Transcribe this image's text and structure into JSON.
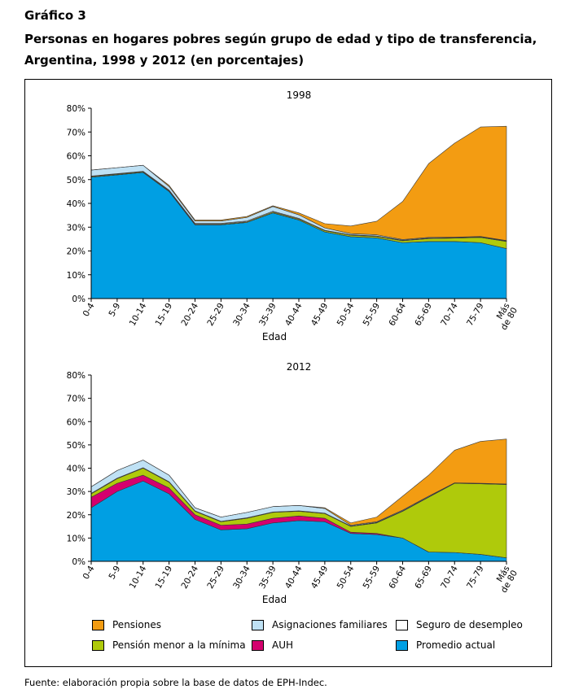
{
  "figure_label": "Gráfico 3",
  "title": "Personas en hogares pobres según grupo de edad y tipo de transferencia, Argentina, 1998 y 2012 (en porcentajes)",
  "source": "Fuente: elaboración propia sobre la base de datos de EPH-Indec.",
  "colors": {
    "pensiones": "#F39C12",
    "asignaciones": "#BFE1F4",
    "seguro": "#FFFFFF",
    "pension_menor": "#AFCA0B",
    "auh": "#D4006E",
    "promedio": "#009FE3"
  },
  "legend": [
    {
      "key": "pensiones",
      "label": "Pensiones"
    },
    {
      "key": "asignaciones",
      "label": "Asignaciones familiares"
    },
    {
      "key": "seguro",
      "label": "Seguro de desempleo"
    },
    {
      "key": "pension_menor",
      "label": "Pensión menor a la mínima"
    },
    {
      "key": "auh",
      "label": "AUH"
    },
    {
      "key": "promedio",
      "label": "Promedio actual"
    }
  ],
  "chart_data": [
    {
      "type": "area",
      "title": "1998",
      "xlabel": "Edad",
      "ylabel": "",
      "ylim": [
        0,
        80
      ],
      "ytick_labels": [
        "0%",
        "10%",
        "20%",
        "30%",
        "40%",
        "50%",
        "60%",
        "70%",
        "80%"
      ],
      "categories": [
        "0-4",
        "5-9",
        "10-14",
        "15-19",
        "20-24",
        "25-29",
        "30-34",
        "35-39",
        "40-44",
        "45-49",
        "50-54",
        "55-59",
        "60-64",
        "65-69",
        "70-74",
        "75-79",
        "Más de 80"
      ],
      "stacked": true,
      "series": [
        {
          "name": "Promedio actual",
          "key": "promedio",
          "values": [
            51,
            52,
            53,
            45,
            31,
            31,
            32,
            36,
            33,
            28,
            26,
            25.5,
            23.5,
            24,
            24,
            23.5,
            21
          ]
        },
        {
          "name": "AUH",
          "key": "auh",
          "values": [
            0,
            0,
            0,
            0,
            0,
            0,
            0,
            0,
            0,
            0,
            0,
            0,
            0,
            0,
            0,
            0,
            0
          ]
        },
        {
          "name": "Pensión menor a la mínima",
          "key": "pension_menor",
          "values": [
            0.3,
            0.3,
            0.3,
            0.3,
            0.3,
            0.3,
            0.3,
            0.4,
            0.4,
            0.5,
            0.6,
            0.6,
            0.8,
            1.2,
            1.4,
            2.2,
            3
          ]
        },
        {
          "name": "Seguro de desempleo",
          "key": "seguro",
          "values": [
            0.2,
            0.2,
            0.2,
            0.3,
            0.3,
            0.3,
            0.3,
            0.3,
            0.3,
            0.2,
            0.2,
            0.2,
            0.2,
            0.2,
            0.2,
            0.2,
            0.2
          ]
        },
        {
          "name": "Asignaciones familiares",
          "key": "asignaciones",
          "values": [
            2.5,
            2.5,
            2.5,
            1.5,
            1,
            1,
            1.5,
            2,
            1.5,
            1,
            0.5,
            0.5,
            0.3,
            0.3,
            0.2,
            0.2,
            0.2
          ]
        },
        {
          "name": "Pensiones",
          "key": "pensiones",
          "values": [
            0,
            0,
            0,
            0.5,
            0.4,
            0.4,
            0.4,
            0.3,
            0.8,
            1.8,
            3.2,
            5.7,
            16,
            31,
            39.5,
            46,
            48
          ]
        }
      ]
    },
    {
      "type": "area",
      "title": "2012",
      "xlabel": "Edad",
      "ylabel": "",
      "ylim": [
        0,
        80
      ],
      "ytick_labels": [
        "0%",
        "10%",
        "20%",
        "30%",
        "40%",
        "50%",
        "60%",
        "70%",
        "80%"
      ],
      "categories": [
        "0-4",
        "5-9",
        "10-14",
        "15-19",
        "20-24",
        "25-29",
        "30-34",
        "35-39",
        "40-44",
        "45-49",
        "50-54",
        "55-59",
        "60-64",
        "65-69",
        "70-74",
        "75-79",
        "Más de 80"
      ],
      "stacked": true,
      "series": [
        {
          "name": "Promedio actual",
          "key": "promedio",
          "values": [
            23,
            30,
            34.5,
            29,
            18,
            13.5,
            14,
            16.5,
            17.5,
            17,
            12,
            11.5,
            10,
            4,
            3.8,
            3,
            1.5
          ]
        },
        {
          "name": "AUH",
          "key": "auh",
          "values": [
            4.5,
            3.5,
            2.5,
            2.5,
            2,
            2,
            2,
            2,
            2,
            1.5,
            0.5,
            0.5,
            0,
            0,
            0,
            0,
            0
          ]
        },
        {
          "name": "Pensión menor a la mínima",
          "key": "pension_menor",
          "values": [
            1.5,
            2,
            3,
            2.5,
            1.5,
            1.5,
            2.5,
            2.5,
            2,
            2,
            2.5,
            4.5,
            11.5,
            23.5,
            29.7,
            30.3,
            31.5
          ]
        },
        {
          "name": "Seguro de desempleo",
          "key": "seguro",
          "values": [
            0.2,
            0.2,
            0.2,
            0.2,
            0.2,
            0.2,
            0.2,
            0.2,
            0.2,
            0.2,
            0.2,
            0.2,
            0.2,
            0.2,
            0.2,
            0.2,
            0.2
          ]
        },
        {
          "name": "Asignaciones familiares",
          "key": "asignaciones",
          "values": [
            2.8,
            3.3,
            3.3,
            2.8,
            1.3,
            1.8,
            2.3,
            2.3,
            2.3,
            2,
            0.3,
            0.3,
            0.3,
            0.3,
            0,
            0,
            0
          ]
        },
        {
          "name": "Pensiones",
          "key": "pensiones",
          "values": [
            0,
            0,
            0,
            0,
            0,
            0,
            0,
            0,
            0,
            0.3,
            1,
            2,
            6,
            9,
            14,
            18,
            19.3
          ]
        }
      ]
    }
  ]
}
